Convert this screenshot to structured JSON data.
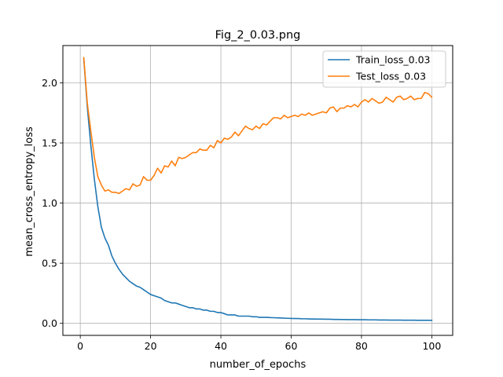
{
  "chart_data": {
    "type": "line",
    "title": "Fig_2_0.03.png",
    "xlabel": "number_of_epochs",
    "ylabel": "mean_cross_entropy_loss",
    "xlim": [
      -4.95,
      105.95
    ],
    "ylim": [
      -0.1,
      2.31
    ],
    "xticks": [
      0,
      20,
      40,
      60,
      80,
      100
    ],
    "yticks": [
      0.0,
      0.5,
      1.0,
      1.5,
      2.0
    ],
    "xtick_labels": [
      "0",
      "20",
      "40",
      "60",
      "80",
      "100"
    ],
    "ytick_labels": [
      "0.0",
      "0.5",
      "1.0",
      "1.5",
      "2.0"
    ],
    "grid": true,
    "legend_position": "upper right",
    "series": [
      {
        "name": "Train_loss_0.03",
        "color": "#1f77b4",
        "x": [
          1,
          2,
          3,
          4,
          5,
          6,
          7,
          8,
          9,
          10,
          11,
          12,
          13,
          14,
          15,
          16,
          17,
          18,
          19,
          20,
          21,
          22,
          23,
          24,
          25,
          26,
          27,
          28,
          29,
          30,
          31,
          32,
          33,
          34,
          35,
          36,
          37,
          38,
          39,
          40,
          41,
          42,
          43,
          44,
          45,
          46,
          47,
          48,
          49,
          50,
          51,
          52,
          53,
          54,
          55,
          56,
          57,
          58,
          59,
          60,
          61,
          62,
          63,
          64,
          65,
          66,
          67,
          68,
          69,
          70,
          71,
          72,
          73,
          74,
          75,
          76,
          77,
          78,
          79,
          80,
          81,
          82,
          83,
          84,
          85,
          86,
          87,
          88,
          89,
          90,
          91,
          92,
          93,
          94,
          95,
          96,
          97,
          98,
          99,
          100
        ],
        "y": [
          2.2,
          1.8,
          1.48,
          1.2,
          0.97,
          0.8,
          0.71,
          0.65,
          0.56,
          0.5,
          0.45,
          0.41,
          0.38,
          0.35,
          0.33,
          0.31,
          0.3,
          0.28,
          0.26,
          0.24,
          0.23,
          0.22,
          0.21,
          0.19,
          0.18,
          0.17,
          0.17,
          0.16,
          0.15,
          0.14,
          0.13,
          0.13,
          0.12,
          0.12,
          0.11,
          0.11,
          0.1,
          0.1,
          0.09,
          0.09,
          0.08,
          0.07,
          0.07,
          0.07,
          0.06,
          0.06,
          0.06,
          0.06,
          0.055,
          0.055,
          0.05,
          0.05,
          0.05,
          0.048,
          0.047,
          0.046,
          0.045,
          0.043,
          0.042,
          0.041,
          0.04,
          0.04,
          0.038,
          0.038,
          0.037,
          0.036,
          0.036,
          0.035,
          0.035,
          0.034,
          0.034,
          0.033,
          0.033,
          0.032,
          0.032,
          0.031,
          0.031,
          0.031,
          0.03,
          0.03,
          0.03,
          0.029,
          0.029,
          0.029,
          0.028,
          0.028,
          0.028,
          0.027,
          0.027,
          0.027,
          0.027,
          0.026,
          0.026,
          0.026,
          0.026,
          0.025,
          0.025,
          0.025,
          0.025,
          0.025
        ]
      },
      {
        "name": "Test_loss_0.03",
        "color": "#ff7f0e",
        "x": [
          1,
          2,
          3,
          4,
          5,
          6,
          7,
          8,
          9,
          10,
          11,
          12,
          13,
          14,
          15,
          16,
          17,
          18,
          19,
          20,
          21,
          22,
          23,
          24,
          25,
          26,
          27,
          28,
          29,
          30,
          31,
          32,
          33,
          34,
          35,
          36,
          37,
          38,
          39,
          40,
          41,
          42,
          43,
          44,
          45,
          46,
          47,
          48,
          49,
          50,
          51,
          52,
          53,
          54,
          55,
          56,
          57,
          58,
          59,
          60,
          61,
          62,
          63,
          64,
          65,
          66,
          67,
          68,
          69,
          70,
          71,
          72,
          73,
          74,
          75,
          76,
          77,
          78,
          79,
          80,
          81,
          82,
          83,
          84,
          85,
          86,
          87,
          88,
          89,
          90,
          91,
          92,
          93,
          94,
          95,
          96,
          97,
          98,
          99,
          100
        ],
        "y": [
          2.21,
          1.83,
          1.6,
          1.38,
          1.22,
          1.15,
          1.1,
          1.11,
          1.09,
          1.09,
          1.08,
          1.1,
          1.12,
          1.11,
          1.16,
          1.14,
          1.15,
          1.22,
          1.19,
          1.19,
          1.23,
          1.29,
          1.25,
          1.31,
          1.3,
          1.35,
          1.31,
          1.38,
          1.37,
          1.38,
          1.4,
          1.42,
          1.42,
          1.45,
          1.44,
          1.44,
          1.48,
          1.46,
          1.52,
          1.5,
          1.54,
          1.53,
          1.55,
          1.59,
          1.56,
          1.6,
          1.64,
          1.62,
          1.61,
          1.64,
          1.62,
          1.66,
          1.65,
          1.68,
          1.71,
          1.71,
          1.7,
          1.73,
          1.71,
          1.72,
          1.73,
          1.72,
          1.74,
          1.73,
          1.75,
          1.73,
          1.74,
          1.75,
          1.76,
          1.75,
          1.79,
          1.8,
          1.76,
          1.79,
          1.79,
          1.81,
          1.8,
          1.82,
          1.8,
          1.84,
          1.86,
          1.84,
          1.87,
          1.85,
          1.83,
          1.84,
          1.88,
          1.86,
          1.84,
          1.88,
          1.89,
          1.86,
          1.87,
          1.89,
          1.86,
          1.87,
          1.87,
          1.92,
          1.91,
          1.88
        ]
      }
    ]
  }
}
